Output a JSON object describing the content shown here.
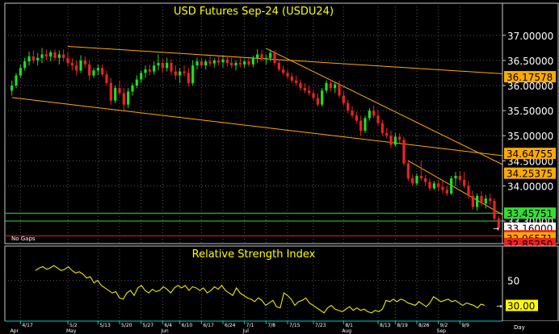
{
  "colors": {
    "background": "#000000",
    "frame": "#c8c8c8",
    "grid": "#5a5a5a",
    "title": "#ffff00",
    "up_candle": "#22dd22",
    "down_candle": "#ee2222",
    "trendline": "#ffaa00",
    "green_line": "#33dd33",
    "red_line": "#ee2222",
    "axis_text": "#ffffff",
    "rsi_line": "#ffff00",
    "date_axis": "#00cccc",
    "label_orange": "#ffaa00",
    "label_green": "#33dd33",
    "label_red": "#ee2222",
    "label_yellow": "#ffff00",
    "label_white": "#ffffff"
  },
  "chart_data": [
    {
      "type": "candlestick",
      "title": "USD Futures Sep-24 (USDU24)",
      "note": "No Gaps",
      "ylim": [
        32.85,
        37.35
      ],
      "yticks": [
        "37.00000",
        "36.50000",
        "36.00000",
        "35.50000",
        "35.00000",
        "34.50000",
        "34.00000",
        "33.30000"
      ],
      "ytick_values": [
        37.0,
        36.5,
        36.0,
        35.5,
        35.0,
        34.5,
        34.0,
        33.3
      ],
      "price_labels": [
        {
          "text": "36.17578",
          "value": 36.17578,
          "style": "orange"
        },
        {
          "text": "34.64755",
          "value": 34.64755,
          "style": "orange"
        },
        {
          "text": "34.25375",
          "value": 34.25375,
          "style": "orange"
        },
        {
          "text": "33.45751",
          "value": 33.45751,
          "style": "green"
        },
        {
          "text": "33.16000",
          "value": 33.16,
          "style": "white"
        },
        {
          "text": "33.00750",
          "value": 33.0075,
          "style": "red"
        },
        {
          "text": "32.96571",
          "value": 32.96571,
          "style": "orange"
        },
        {
          "text": "32.85250",
          "value": 32.8525,
          "style": "red"
        }
      ],
      "horizontal_lines": [
        {
          "value": 33.45751,
          "color": "green"
        },
        {
          "value": 33.3,
          "color": "green"
        },
        {
          "value": 33.0075,
          "color": "red"
        }
      ],
      "trendlines": [
        {
          "from": [
            13,
            36.78
          ],
          "to": [
            124,
            36.18
          ]
        },
        {
          "from": [
            0,
            35.76
          ],
          "to": [
            124,
            34.5
          ]
        },
        {
          "from": [
            59,
            36.74
          ],
          "to": [
            124,
            34.0
          ]
        },
        {
          "from": [
            92,
            34.5
          ],
          "to": [
            124,
            32.93
          ]
        }
      ],
      "candles": [
        {
          "o": 35.9,
          "h": 36.1,
          "l": 35.8,
          "c": 36.0
        },
        {
          "o": 36.0,
          "h": 36.25,
          "l": 35.95,
          "c": 36.2
        },
        {
          "o": 36.2,
          "h": 36.42,
          "l": 36.15,
          "c": 36.35
        },
        {
          "o": 36.35,
          "h": 36.55,
          "l": 36.3,
          "c": 36.48
        },
        {
          "o": 36.48,
          "h": 36.68,
          "l": 36.4,
          "c": 36.58
        },
        {
          "o": 36.58,
          "h": 36.7,
          "l": 36.44,
          "c": 36.5
        },
        {
          "o": 36.5,
          "h": 36.65,
          "l": 36.4,
          "c": 36.55
        },
        {
          "o": 36.55,
          "h": 36.75,
          "l": 36.45,
          "c": 36.62
        },
        {
          "o": 36.62,
          "h": 36.72,
          "l": 36.5,
          "c": 36.58
        },
        {
          "o": 36.58,
          "h": 36.7,
          "l": 36.48,
          "c": 36.66
        },
        {
          "o": 36.66,
          "h": 36.72,
          "l": 36.5,
          "c": 36.55
        },
        {
          "o": 36.55,
          "h": 36.7,
          "l": 36.42,
          "c": 36.62
        },
        {
          "o": 36.62,
          "h": 36.72,
          "l": 36.48,
          "c": 36.55
        },
        {
          "o": 36.55,
          "h": 36.68,
          "l": 36.38,
          "c": 36.45
        },
        {
          "o": 36.45,
          "h": 36.55,
          "l": 36.3,
          "c": 36.4
        },
        {
          "o": 36.4,
          "h": 36.5,
          "l": 36.2,
          "c": 36.3
        },
        {
          "o": 36.3,
          "h": 36.6,
          "l": 36.25,
          "c": 36.5
        },
        {
          "o": 36.5,
          "h": 36.58,
          "l": 36.35,
          "c": 36.42
        },
        {
          "o": 36.42,
          "h": 36.5,
          "l": 36.1,
          "c": 36.2
        },
        {
          "o": 36.2,
          "h": 36.35,
          "l": 36.15,
          "c": 36.3
        },
        {
          "o": 36.3,
          "h": 36.42,
          "l": 36.2,
          "c": 36.35
        },
        {
          "o": 36.35,
          "h": 36.42,
          "l": 36.18,
          "c": 36.22
        },
        {
          "o": 36.22,
          "h": 36.3,
          "l": 36.0,
          "c": 36.05
        },
        {
          "o": 36.05,
          "h": 36.15,
          "l": 35.62,
          "c": 35.7
        },
        {
          "o": 35.7,
          "h": 36.0,
          "l": 35.65,
          "c": 35.95
        },
        {
          "o": 35.95,
          "h": 36.1,
          "l": 35.8,
          "c": 35.85
        },
        {
          "o": 35.85,
          "h": 35.95,
          "l": 35.5,
          "c": 35.62
        },
        {
          "o": 35.62,
          "h": 35.95,
          "l": 35.55,
          "c": 35.88
        },
        {
          "o": 35.88,
          "h": 36.05,
          "l": 35.8,
          "c": 36.0
        },
        {
          "o": 36.0,
          "h": 36.2,
          "l": 35.95,
          "c": 36.12
        },
        {
          "o": 36.12,
          "h": 36.3,
          "l": 36.05,
          "c": 36.25
        },
        {
          "o": 36.25,
          "h": 36.4,
          "l": 36.15,
          "c": 36.32
        },
        {
          "o": 36.32,
          "h": 36.42,
          "l": 36.2,
          "c": 36.28
        },
        {
          "o": 36.28,
          "h": 36.48,
          "l": 36.22,
          "c": 36.4
        },
        {
          "o": 36.4,
          "h": 36.62,
          "l": 36.3,
          "c": 36.45
        },
        {
          "o": 36.45,
          "h": 36.52,
          "l": 36.25,
          "c": 36.35
        },
        {
          "o": 36.35,
          "h": 36.55,
          "l": 36.28,
          "c": 36.45
        },
        {
          "o": 36.45,
          "h": 36.52,
          "l": 36.2,
          "c": 36.28
        },
        {
          "o": 36.28,
          "h": 36.4,
          "l": 36.12,
          "c": 36.2
        },
        {
          "o": 36.2,
          "h": 36.35,
          "l": 36.05,
          "c": 36.28
        },
        {
          "o": 36.28,
          "h": 36.4,
          "l": 36.18,
          "c": 36.25
        },
        {
          "o": 36.25,
          "h": 36.35,
          "l": 35.98,
          "c": 36.05
        },
        {
          "o": 36.05,
          "h": 36.5,
          "l": 36.0,
          "c": 36.4
        },
        {
          "o": 36.4,
          "h": 36.55,
          "l": 36.32,
          "c": 36.48
        },
        {
          "o": 36.48,
          "h": 36.55,
          "l": 36.35,
          "c": 36.4
        },
        {
          "o": 36.4,
          "h": 36.52,
          "l": 36.32,
          "c": 36.48
        },
        {
          "o": 36.48,
          "h": 36.58,
          "l": 36.38,
          "c": 36.44
        },
        {
          "o": 36.44,
          "h": 36.54,
          "l": 36.36,
          "c": 36.5
        },
        {
          "o": 36.5,
          "h": 36.6,
          "l": 36.4,
          "c": 36.46
        },
        {
          "o": 36.46,
          "h": 36.58,
          "l": 36.36,
          "c": 36.52
        },
        {
          "o": 36.52,
          "h": 36.6,
          "l": 36.38,
          "c": 36.45
        },
        {
          "o": 36.45,
          "h": 36.55,
          "l": 36.35,
          "c": 36.4
        },
        {
          "o": 36.4,
          "h": 36.5,
          "l": 36.3,
          "c": 36.45
        },
        {
          "o": 36.45,
          "h": 36.55,
          "l": 36.36,
          "c": 36.42
        },
        {
          "o": 36.42,
          "h": 36.52,
          "l": 36.35,
          "c": 36.48
        },
        {
          "o": 36.48,
          "h": 36.55,
          "l": 36.38,
          "c": 36.42
        },
        {
          "o": 36.42,
          "h": 36.6,
          "l": 36.36,
          "c": 36.55
        },
        {
          "o": 36.55,
          "h": 36.72,
          "l": 36.45,
          "c": 36.62
        },
        {
          "o": 36.62,
          "h": 36.7,
          "l": 36.48,
          "c": 36.52
        },
        {
          "o": 36.52,
          "h": 36.62,
          "l": 36.42,
          "c": 36.55
        },
        {
          "o": 36.55,
          "h": 36.72,
          "l": 36.48,
          "c": 36.65
        },
        {
          "o": 36.65,
          "h": 36.7,
          "l": 36.4,
          "c": 36.45
        },
        {
          "o": 36.45,
          "h": 36.52,
          "l": 36.28,
          "c": 36.32
        },
        {
          "o": 36.32,
          "h": 36.4,
          "l": 36.2,
          "c": 36.25
        },
        {
          "o": 36.25,
          "h": 36.32,
          "l": 36.12,
          "c": 36.18
        },
        {
          "o": 36.18,
          "h": 36.25,
          "l": 36.05,
          "c": 36.1
        },
        {
          "o": 36.1,
          "h": 36.2,
          "l": 36.0,
          "c": 36.05
        },
        {
          "o": 36.05,
          "h": 36.12,
          "l": 35.9,
          "c": 35.95
        },
        {
          "o": 35.95,
          "h": 36.05,
          "l": 35.85,
          "c": 35.9
        },
        {
          "o": 35.9,
          "h": 36.0,
          "l": 35.8,
          "c": 35.85
        },
        {
          "o": 35.85,
          "h": 35.92,
          "l": 35.7,
          "c": 35.75
        },
        {
          "o": 35.75,
          "h": 35.85,
          "l": 35.58,
          "c": 35.62
        },
        {
          "o": 35.62,
          "h": 35.95,
          "l": 35.58,
          "c": 35.9
        },
        {
          "o": 35.9,
          "h": 36.1,
          "l": 35.85,
          "c": 36.05
        },
        {
          "o": 36.05,
          "h": 36.12,
          "l": 35.88,
          "c": 35.95
        },
        {
          "o": 35.95,
          "h": 36.08,
          "l": 35.85,
          "c": 36.02
        },
        {
          "o": 36.02,
          "h": 36.1,
          "l": 35.75,
          "c": 35.8
        },
        {
          "o": 35.8,
          "h": 35.88,
          "l": 35.6,
          "c": 35.65
        },
        {
          "o": 35.65,
          "h": 35.72,
          "l": 35.45,
          "c": 35.5
        },
        {
          "o": 35.5,
          "h": 35.58,
          "l": 35.35,
          "c": 35.4
        },
        {
          "o": 35.4,
          "h": 35.48,
          "l": 35.25,
          "c": 35.3
        },
        {
          "o": 35.3,
          "h": 35.4,
          "l": 35.0,
          "c": 35.1
        },
        {
          "o": 35.1,
          "h": 35.4,
          "l": 35.05,
          "c": 35.35
        },
        {
          "o": 35.35,
          "h": 35.55,
          "l": 35.3,
          "c": 35.5
        },
        {
          "o": 35.5,
          "h": 35.6,
          "l": 35.35,
          "c": 35.4
        },
        {
          "o": 35.4,
          "h": 35.5,
          "l": 35.2,
          "c": 35.25
        },
        {
          "o": 35.25,
          "h": 35.32,
          "l": 35.0,
          "c": 35.05
        },
        {
          "o": 35.05,
          "h": 35.15,
          "l": 34.95,
          "c": 35.0
        },
        {
          "o": 35.0,
          "h": 35.1,
          "l": 34.75,
          "c": 34.82
        },
        {
          "o": 34.82,
          "h": 35.05,
          "l": 34.78,
          "c": 34.98
        },
        {
          "o": 34.98,
          "h": 35.05,
          "l": 34.85,
          "c": 34.92
        },
        {
          "o": 34.92,
          "h": 34.98,
          "l": 34.4,
          "c": 34.45
        },
        {
          "o": 34.45,
          "h": 34.52,
          "l": 34.1,
          "c": 34.15
        },
        {
          "o": 34.15,
          "h": 34.22,
          "l": 34.0,
          "c": 34.05
        },
        {
          "o": 34.05,
          "h": 34.25,
          "l": 34.0,
          "c": 34.2
        },
        {
          "o": 34.2,
          "h": 34.5,
          "l": 34.1,
          "c": 34.15
        },
        {
          "o": 34.15,
          "h": 34.22,
          "l": 34.0,
          "c": 34.08
        },
        {
          "o": 34.08,
          "h": 34.15,
          "l": 33.9,
          "c": 33.95
        },
        {
          "o": 33.95,
          "h": 34.1,
          "l": 33.92,
          "c": 34.05
        },
        {
          "o": 34.05,
          "h": 34.12,
          "l": 33.9,
          "c": 33.98
        },
        {
          "o": 33.98,
          "h": 34.1,
          "l": 33.85,
          "c": 33.92
        },
        {
          "o": 33.92,
          "h": 34.0,
          "l": 33.8,
          "c": 33.85
        },
        {
          "o": 33.85,
          "h": 34.2,
          "l": 33.82,
          "c": 34.15
        },
        {
          "o": 34.15,
          "h": 34.28,
          "l": 34.0,
          "c": 34.2
        },
        {
          "o": 34.2,
          "h": 34.3,
          "l": 34.05,
          "c": 34.12
        },
        {
          "o": 34.12,
          "h": 34.28,
          "l": 33.95,
          "c": 34.0
        },
        {
          "o": 34.0,
          "h": 34.1,
          "l": 33.75,
          "c": 33.8
        },
        {
          "o": 33.8,
          "h": 33.9,
          "l": 33.52,
          "c": 33.58
        },
        {
          "o": 33.58,
          "h": 33.85,
          "l": 33.5,
          "c": 33.8
        },
        {
          "o": 33.8,
          "h": 33.9,
          "l": 33.6,
          "c": 33.65
        },
        {
          "o": 33.65,
          "h": 33.82,
          "l": 33.55,
          "c": 33.75
        },
        {
          "o": 33.75,
          "h": 33.85,
          "l": 33.62,
          "c": 33.7
        },
        {
          "o": 33.7,
          "h": 33.75,
          "l": 33.3,
          "c": 33.35
        },
        {
          "o": 33.35,
          "h": 33.4,
          "l": 33.12,
          "c": 33.16
        }
      ],
      "xticks": [
        {
          "label": "4/17",
          "i": 2
        },
        {
          "label": "5/2",
          "i": 13
        },
        {
          "label": "5/13",
          "i": 20
        },
        {
          "label": "5/20",
          "i": 25
        },
        {
          "label": "5/27",
          "i": 30
        },
        {
          "label": "6/4",
          "i": 35
        },
        {
          "label": "6/10",
          "i": 39
        },
        {
          "label": "6/17",
          "i": 44
        },
        {
          "label": "6/24",
          "i": 49
        },
        {
          "label": "7/1",
          "i": 54
        },
        {
          "label": "7/8",
          "i": 59
        },
        {
          "label": "7/15",
          "i": 64
        },
        {
          "label": "7/23",
          "i": 70
        },
        {
          "label": "8/1",
          "i": 77
        },
        {
          "label": "8/13",
          "i": 85
        },
        {
          "label": "8/19",
          "i": 89
        },
        {
          "label": "8/26",
          "i": 94
        },
        {
          "label": "9/2",
          "i": 99
        },
        {
          "label": "9/9",
          "i": 104
        }
      ],
      "month_labels": [
        {
          "label": "Apr",
          "i": 0
        },
        {
          "label": "May",
          "i": 13
        },
        {
          "label": "Jun",
          "i": 35
        },
        {
          "label": "Jul",
          "i": 54
        },
        {
          "label": "Aug",
          "i": 77
        },
        {
          "label": "Sep",
          "i": 99
        }
      ],
      "x_unit_label": "Day"
    },
    {
      "type": "line",
      "title": "Relative Strength Index",
      "ylim": [
        20,
        75
      ],
      "yticks": [
        "50"
      ],
      "ytick_values": [
        50
      ],
      "current_label": "30.00",
      "current_value": 30,
      "values": [
        58,
        60,
        61,
        59,
        60,
        62,
        60,
        58,
        59,
        61,
        58,
        56,
        57,
        55,
        52,
        53,
        48,
        50,
        46,
        44,
        42,
        40,
        41,
        36,
        35,
        40,
        42,
        38,
        44,
        46,
        42,
        40,
        43,
        41,
        42,
        45,
        43,
        40,
        44,
        46,
        44,
        46,
        42,
        45,
        44,
        42,
        44,
        40,
        42,
        45,
        43,
        46,
        42,
        40,
        38,
        44,
        40,
        38,
        36,
        35,
        33,
        36,
        34,
        30,
        32,
        34,
        29,
        28,
        40,
        38,
        35,
        30,
        33,
        34,
        36,
        32,
        30,
        28,
        26,
        24,
        28,
        30,
        27,
        26,
        25,
        27,
        29,
        26,
        28,
        26,
        27,
        25,
        24,
        26,
        25,
        27,
        34,
        33,
        35,
        33,
        35,
        34,
        32,
        31,
        30,
        33,
        31,
        29,
        32,
        37,
        35,
        33,
        34,
        35,
        33,
        34,
        32,
        30,
        32,
        31,
        30,
        28,
        31,
        30
      ]
    }
  ]
}
